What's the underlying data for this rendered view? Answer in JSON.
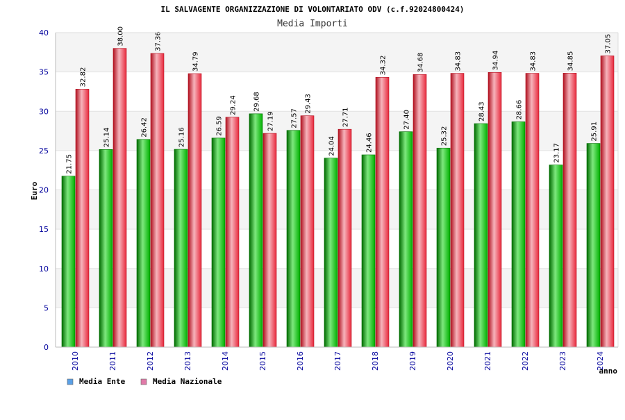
{
  "header": {
    "title": "IL SALVAGENTE ORGANIZZAZIONE DI VOLONTARIATO ODV (c.f.92024800424)",
    "subtitle": "Media Importi"
  },
  "colors": {
    "series_1": "#00b000",
    "series_2": "#e8283c",
    "legend_series_1": "#5aa0e6",
    "legend_series_2": "#e07aa8",
    "axis_text": "#00009c",
    "band": "#f4f4f4"
  },
  "chart_data": {
    "type": "bar",
    "title": "IL SALVAGENTE ORGANIZZAZIONE DI VOLONTARIATO ODV (c.f.92024800424)",
    "subtitle": "Media Importi",
    "xlabel": "anno",
    "ylabel": "Euro",
    "ylim": [
      0,
      40
    ],
    "yticks": [
      0,
      5,
      10,
      15,
      20,
      25,
      30,
      35,
      40
    ],
    "grid": true,
    "legend_position": "bottom-left",
    "categories": [
      "2010",
      "2011",
      "2012",
      "2013",
      "2014",
      "2015",
      "2016",
      "2017",
      "2018",
      "2019",
      "2020",
      "2021",
      "2022",
      "2023",
      "2024"
    ],
    "series": [
      {
        "name": "Media Ente",
        "values": [
          21.75,
          25.14,
          26.42,
          25.16,
          26.59,
          29.68,
          27.57,
          24.04,
          24.46,
          27.4,
          25.32,
          28.43,
          28.66,
          23.17,
          25.91
        ],
        "labels": [
          "21.75",
          "25.14",
          "26.42",
          "25.16",
          "26.59",
          "29.68",
          "27.57",
          "24.04",
          "24.46",
          "27.40",
          "25.32",
          "28.43",
          "28.66",
          "23.17",
          "25.91"
        ]
      },
      {
        "name": "Media Nazionale",
        "values": [
          32.82,
          38.0,
          37.36,
          34.79,
          29.24,
          27.19,
          29.43,
          27.71,
          34.32,
          34.68,
          34.83,
          34.94,
          34.83,
          34.85,
          37.05
        ],
        "labels": [
          "32.82",
          "38.00",
          "37.36",
          "34.79",
          "29.24",
          "27.19",
          "29.43",
          "27.71",
          "34.32",
          "34.68",
          "34.83",
          "34.94",
          "34.83",
          "34.85",
          "37.05"
        ]
      }
    ]
  }
}
